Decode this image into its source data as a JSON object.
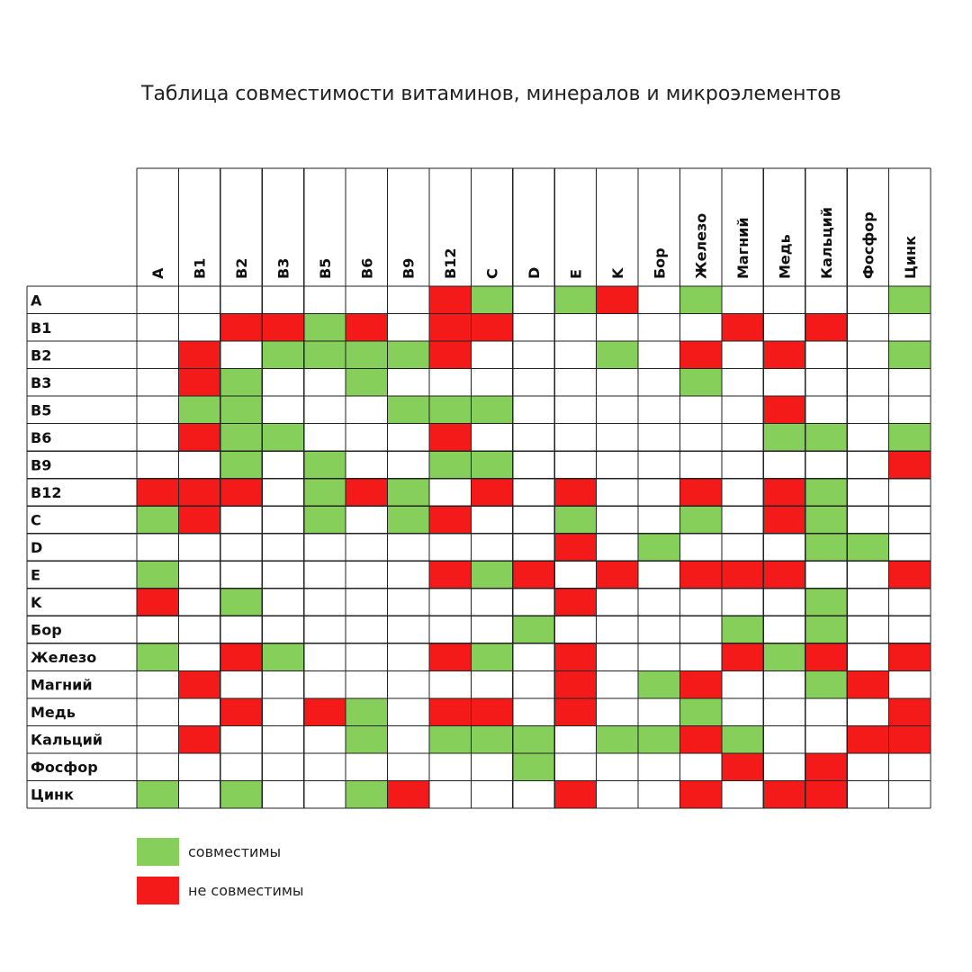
{
  "colors": {
    "compatible": "#86cf5b",
    "incompatible": "#f41a1a",
    "empty": "#ffffff",
    "grid": "#222222"
  },
  "legend": {
    "compatible": "совместимы",
    "incompatible": "не совместимы"
  },
  "chart_data": {
    "type": "table",
    "title": "Таблица совместимости витаминов, минералов и микроэлементов",
    "columns": [
      "A",
      "B1",
      "B2",
      "B3",
      "B5",
      "B6",
      "B9",
      "B12",
      "C",
      "D",
      "E",
      "K",
      "Бор",
      "Железо",
      "Магний",
      "Медь",
      "Кальций",
      "Фосфор",
      "Цинк"
    ],
    "rows": [
      "A",
      "B1",
      "B2",
      "B3",
      "B5",
      "B6",
      "B9",
      "B12",
      "C",
      "D",
      "E",
      "K",
      "Бор",
      "Железо",
      "Магний",
      "Медь",
      "Кальций",
      "Фосфор",
      "Цинк"
    ],
    "legend_codes": {
      "G": "совместимы",
      "R": "не совместимы",
      "": ""
    },
    "matrix": [
      [
        "",
        "",
        "",
        "",
        "",
        "",
        "",
        "R",
        "G",
        "",
        "G",
        "R",
        "",
        "G",
        "",
        "",
        "",
        "",
        "G"
      ],
      [
        "",
        "",
        "R",
        "R",
        "G",
        "R",
        "",
        "R",
        "R",
        "",
        "",
        "",
        "",
        "",
        "R",
        "",
        "R",
        "",
        ""
      ],
      [
        "",
        "R",
        "",
        "G",
        "G",
        "G",
        "G",
        "R",
        "",
        "",
        "",
        "G",
        "",
        "R",
        "",
        "R",
        "",
        "",
        "G"
      ],
      [
        "",
        "R",
        "G",
        "",
        "",
        "G",
        "",
        "",
        "",
        "",
        "",
        "",
        "",
        "G",
        "",
        "",
        "",
        "",
        ""
      ],
      [
        "",
        "G",
        "G",
        "",
        "",
        "",
        "G",
        "G",
        "G",
        "",
        "",
        "",
        "",
        "",
        "",
        "R",
        "",
        "",
        ""
      ],
      [
        "",
        "R",
        "G",
        "G",
        "",
        "",
        "",
        "R",
        "",
        "",
        "",
        "",
        "",
        "",
        "",
        "G",
        "G",
        "",
        "G"
      ],
      [
        "",
        "",
        "G",
        "",
        "G",
        "",
        "",
        "G",
        "G",
        "",
        "",
        "",
        "",
        "",
        "",
        "",
        "",
        "",
        "R"
      ],
      [
        "R",
        "R",
        "R",
        "",
        "G",
        "R",
        "G",
        "",
        "R",
        "",
        "R",
        "",
        "",
        "R",
        "",
        "R",
        "G",
        "",
        ""
      ],
      [
        "G",
        "R",
        "",
        "",
        "G",
        "",
        "G",
        "R",
        "",
        "",
        "G",
        "",
        "",
        "G",
        "",
        "R",
        "G",
        "",
        ""
      ],
      [
        "",
        "",
        "",
        "",
        "",
        "",
        "",
        "",
        "",
        "",
        "R",
        "",
        "G",
        "",
        "",
        "",
        "G",
        "G",
        ""
      ],
      [
        "G",
        "",
        "",
        "",
        "",
        "",
        "",
        "R",
        "G",
        "R",
        "",
        "R",
        "",
        "R",
        "R",
        "R",
        "",
        "",
        "R"
      ],
      [
        "R",
        "",
        "G",
        "",
        "",
        "",
        "",
        "",
        "",
        "",
        "R",
        "",
        "",
        "",
        "",
        "",
        "G",
        "",
        ""
      ],
      [
        "",
        "",
        "",
        "",
        "",
        "",
        "",
        "",
        "",
        "G",
        "",
        "",
        "",
        "",
        "G",
        "",
        "G",
        "",
        ""
      ],
      [
        "G",
        "",
        "R",
        "G",
        "",
        "",
        "",
        "R",
        "G",
        "",
        "R",
        "",
        "",
        "",
        "R",
        "G",
        "R",
        "",
        "R"
      ],
      [
        "",
        "R",
        "",
        "",
        "",
        "",
        "",
        "",
        "",
        "",
        "R",
        "",
        "G",
        "R",
        "",
        "",
        "G",
        "R",
        ""
      ],
      [
        "",
        "",
        "R",
        "",
        "R",
        "G",
        "",
        "R",
        "R",
        "",
        "R",
        "",
        "",
        "G",
        "",
        "",
        "",
        "",
        "R"
      ],
      [
        "",
        "R",
        "",
        "",
        "",
        "G",
        "",
        "G",
        "G",
        "G",
        "",
        "G",
        "G",
        "R",
        "G",
        "",
        "",
        "R",
        "R"
      ],
      [
        "",
        "",
        "",
        "",
        "",
        "",
        "",
        "",
        "",
        "G",
        "",
        "",
        "",
        "",
        "R",
        "",
        "R",
        "",
        ""
      ],
      [
        "G",
        "",
        "G",
        "",
        "",
        "G",
        "R",
        "",
        "",
        "",
        "R",
        "",
        "",
        "R",
        "",
        "R",
        "R",
        "",
        ""
      ]
    ]
  }
}
